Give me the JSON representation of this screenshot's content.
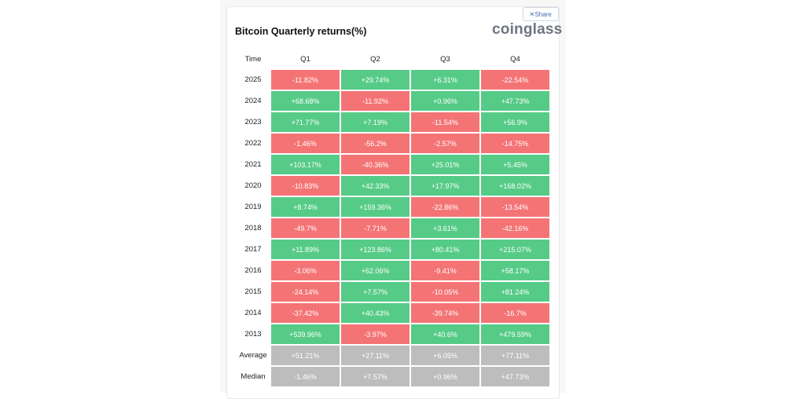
{
  "share_label": "Share",
  "title": "Bitcoin Quarterly returns(%)",
  "brand": "coinglass",
  "colors": {
    "positive": "#56cb87",
    "negative": "#f47476",
    "summary": "#bdbdbd"
  },
  "headers": [
    "Time",
    "Q1",
    "Q2",
    "Q3",
    "Q4"
  ],
  "rows": [
    {
      "label": "2025",
      "cells": [
        "-11.82%",
        "+29.74%",
        "+6.31%",
        "-22.54%"
      ]
    },
    {
      "label": "2024",
      "cells": [
        "+68.68%",
        "-11.92%",
        "+0.96%",
        "+47.73%"
      ]
    },
    {
      "label": "2023",
      "cells": [
        "+71.77%",
        "+7.19%",
        "-11.54%",
        "+56.9%"
      ]
    },
    {
      "label": "2022",
      "cells": [
        "-1.46%",
        "-56.2%",
        "-2.57%",
        "-14.75%"
      ]
    },
    {
      "label": "2021",
      "cells": [
        "+103.17%",
        "-40.36%",
        "+25.01%",
        "+5.45%"
      ]
    },
    {
      "label": "2020",
      "cells": [
        "-10.83%",
        "+42.33%",
        "+17.97%",
        "+168.02%"
      ]
    },
    {
      "label": "2019",
      "cells": [
        "+8.74%",
        "+159.36%",
        "-22.86%",
        "-13.54%"
      ]
    },
    {
      "label": "2018",
      "cells": [
        "-49.7%",
        "-7.71%",
        "+3.61%",
        "-42.16%"
      ]
    },
    {
      "label": "2017",
      "cells": [
        "+11.89%",
        "+123.86%",
        "+80.41%",
        "+215.07%"
      ]
    },
    {
      "label": "2016",
      "cells": [
        "-3.06%",
        "+62.06%",
        "-9.41%",
        "+58.17%"
      ]
    },
    {
      "label": "2015",
      "cells": [
        "-24.14%",
        "+7.57%",
        "-10.05%",
        "+81.24%"
      ]
    },
    {
      "label": "2014",
      "cells": [
        "-37.42%",
        "+40.43%",
        "-39.74%",
        "-16.7%"
      ]
    },
    {
      "label": "2013",
      "cells": [
        "+539.96%",
        "-3.97%",
        "+40.6%",
        "+479.59%"
      ]
    }
  ],
  "summary_rows": [
    {
      "label": "Average",
      "cells": [
        "+51.21%",
        "+27.11%",
        "+6.05%",
        "+77.11%"
      ]
    },
    {
      "label": "Median",
      "cells": [
        "-1.46%",
        "+7.57%",
        "+0.96%",
        "+47.73%"
      ]
    }
  ]
}
